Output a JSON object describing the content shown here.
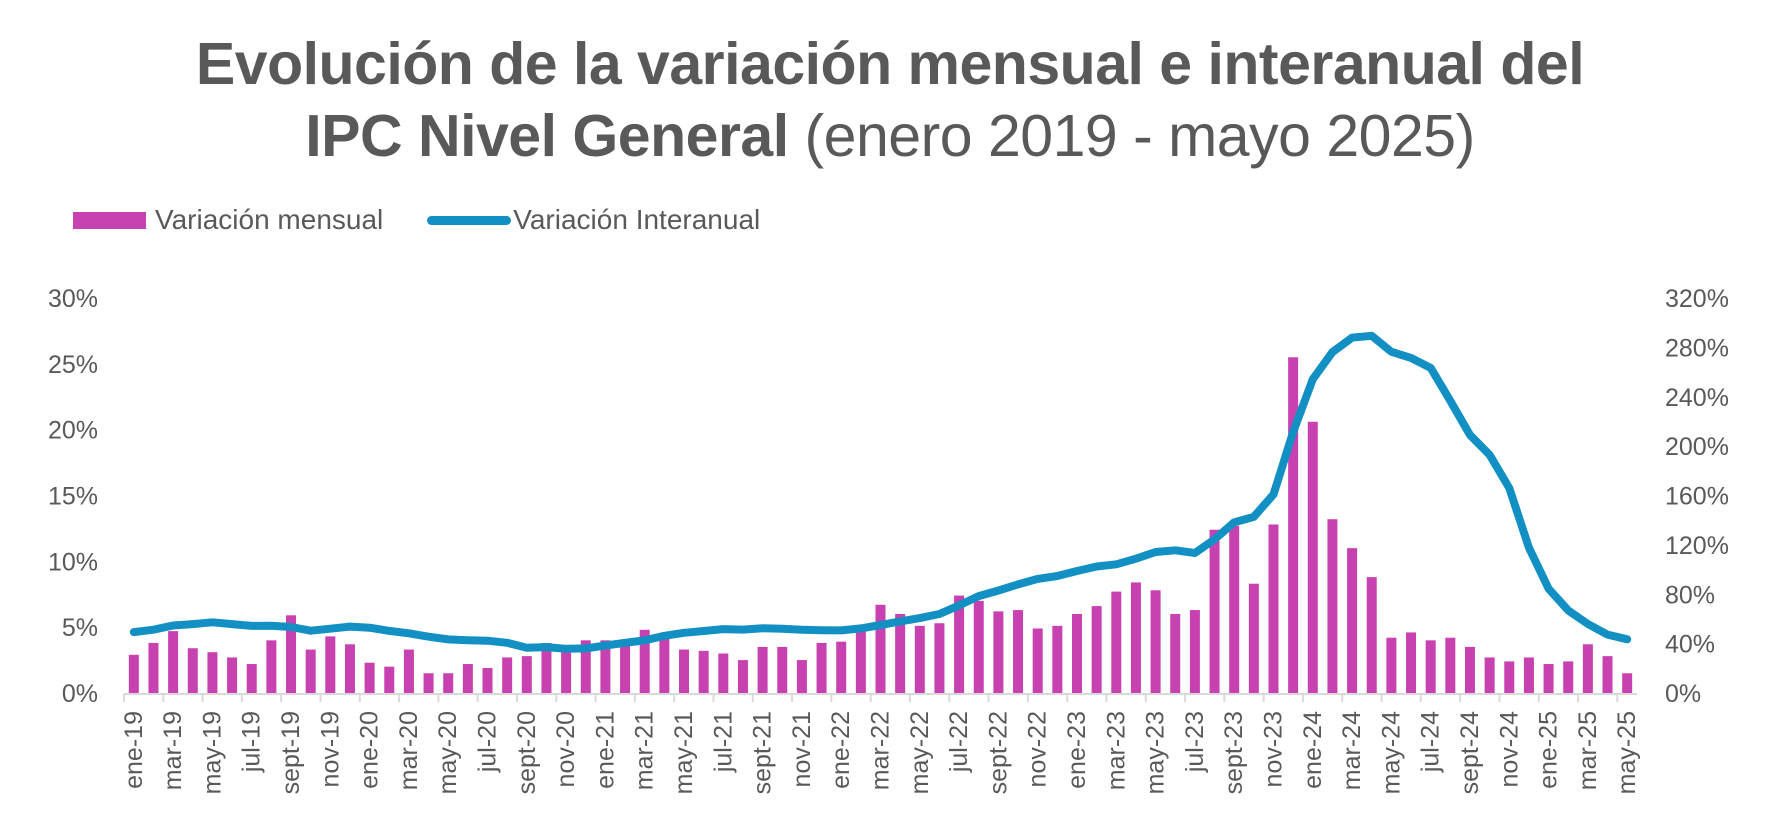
{
  "title": {
    "line1": "Evolución de la variación mensual e interanual del",
    "line2_bold": "IPC Nivel General",
    "line2_light": " (enero 2019 - mayo 2025)"
  },
  "colors": {
    "monthly": "#C841B0",
    "yoy": "#1390C3",
    "axis": "#D9D9D9",
    "text": "#595959"
  },
  "legend": [
    {
      "label": "Variación mensual",
      "kind": "bar"
    },
    {
      "label": "Variación Interanual",
      "kind": "line"
    }
  ],
  "chart_data": {
    "type": "bar+line",
    "title": "Evolución de la variación mensual e interanual del IPC Nivel General (enero 2019 - mayo 2025)",
    "legend_position": "top-left",
    "grid": false,
    "left_axis": {
      "label": "Variación mensual",
      "ylim": [
        0,
        30
      ],
      "ticks": [
        0,
        5,
        10,
        15,
        20,
        25,
        30
      ],
      "tick_labels": [
        "0%",
        "5%",
        "10%",
        "15%",
        "20%",
        "25%",
        "30%"
      ]
    },
    "right_axis": {
      "label": "Variación Interanual",
      "ylim": [
        0,
        320
      ],
      "ticks": [
        0,
        40,
        80,
        120,
        160,
        200,
        240,
        280,
        320
      ],
      "tick_labels": [
        "0%",
        "40%",
        "80%",
        "120%",
        "160%",
        "200%",
        "240%",
        "280%",
        "320%"
      ]
    },
    "x": [
      "ene-19",
      "feb-19",
      "mar-19",
      "abr-19",
      "may-19",
      "jun-19",
      "jul-19",
      "ago-19",
      "sept-19",
      "oct-19",
      "nov-19",
      "dic-19",
      "ene-20",
      "feb-20",
      "mar-20",
      "abr-20",
      "may-20",
      "jun-20",
      "jul-20",
      "ago-20",
      "sept-20",
      "oct-20",
      "nov-20",
      "dic-20",
      "ene-21",
      "feb-21",
      "mar-21",
      "abr-21",
      "may-21",
      "jun-21",
      "jul-21",
      "ago-21",
      "sept-21",
      "oct-21",
      "nov-21",
      "dic-21",
      "ene-22",
      "feb-22",
      "mar-22",
      "abr-22",
      "may-22",
      "jun-22",
      "jul-22",
      "ago-22",
      "sept-22",
      "oct-22",
      "nov-22",
      "dic-22",
      "ene-23",
      "feb-23",
      "mar-23",
      "abr-23",
      "may-23",
      "jun-23",
      "jul-23",
      "ago-23",
      "sept-23",
      "oct-23",
      "nov-23",
      "dic-23",
      "ene-24",
      "feb-24",
      "mar-24",
      "abr-24",
      "may-24",
      "jun-24",
      "jul-24",
      "ago-24",
      "sept-24",
      "oct-24",
      "nov-24",
      "dic-24",
      "ene-25",
      "feb-25",
      "mar-25",
      "abr-25",
      "may-25"
    ],
    "x_tick_labels_shown_every": 2,
    "series": [
      {
        "name": "Variación mensual",
        "type": "bar",
        "axis": "left",
        "values": [
          2.9,
          3.8,
          4.7,
          3.4,
          3.1,
          2.7,
          2.2,
          4.0,
          5.9,
          3.3,
          4.3,
          3.7,
          2.3,
          2.0,
          3.3,
          1.5,
          1.5,
          2.2,
          1.9,
          2.7,
          2.8,
          3.8,
          3.2,
          4.0,
          4.0,
          3.6,
          4.8,
          4.1,
          3.3,
          3.2,
          3.0,
          2.5,
          3.5,
          3.5,
          2.5,
          3.8,
          3.9,
          4.7,
          6.7,
          6.0,
          5.1,
          5.3,
          7.4,
          7.0,
          6.2,
          6.3,
          4.9,
          5.1,
          6.0,
          6.6,
          7.7,
          8.4,
          7.8,
          6.0,
          6.3,
          12.4,
          12.7,
          8.3,
          12.8,
          25.5,
          20.6,
          13.2,
          11.0,
          8.8,
          4.2,
          4.6,
          4.0,
          4.2,
          3.5,
          2.7,
          2.4,
          2.7,
          2.2,
          2.4,
          3.7,
          2.8,
          1.5
        ]
      },
      {
        "name": "Variación Interanual",
        "type": "line",
        "axis": "right",
        "values": [
          49.3,
          51.3,
          54.7,
          55.8,
          57.3,
          55.8,
          54.4,
          54.5,
          53.5,
          50.5,
          52.1,
          53.8,
          52.9,
          50.3,
          48.4,
          45.6,
          43.4,
          42.8,
          42.4,
          40.7,
          36.6,
          37.2,
          35.8,
          36.1,
          38.5,
          40.7,
          42.6,
          46.3,
          48.8,
          50.2,
          51.8,
          51.4,
          52.5,
          52.1,
          51.2,
          50.9,
          50.7,
          52.3,
          55.1,
          58.0,
          60.7,
          64.0,
          71.0,
          78.5,
          83.0,
          88.0,
          92.4,
          94.8,
          98.8,
          102.5,
          104.3,
          108.8,
          114.2,
          115.6,
          113.4,
          124.4,
          138.3,
          142.7,
          160.9,
          211.4,
          254.2,
          276.2,
          287.9,
          289.4,
          276.4,
          271.5,
          263.4,
          236.7,
          209.0,
          193.0,
          166.0,
          117.8,
          84.5,
          66.9,
          55.9,
          47.3,
          43.5
        ]
      }
    ]
  }
}
